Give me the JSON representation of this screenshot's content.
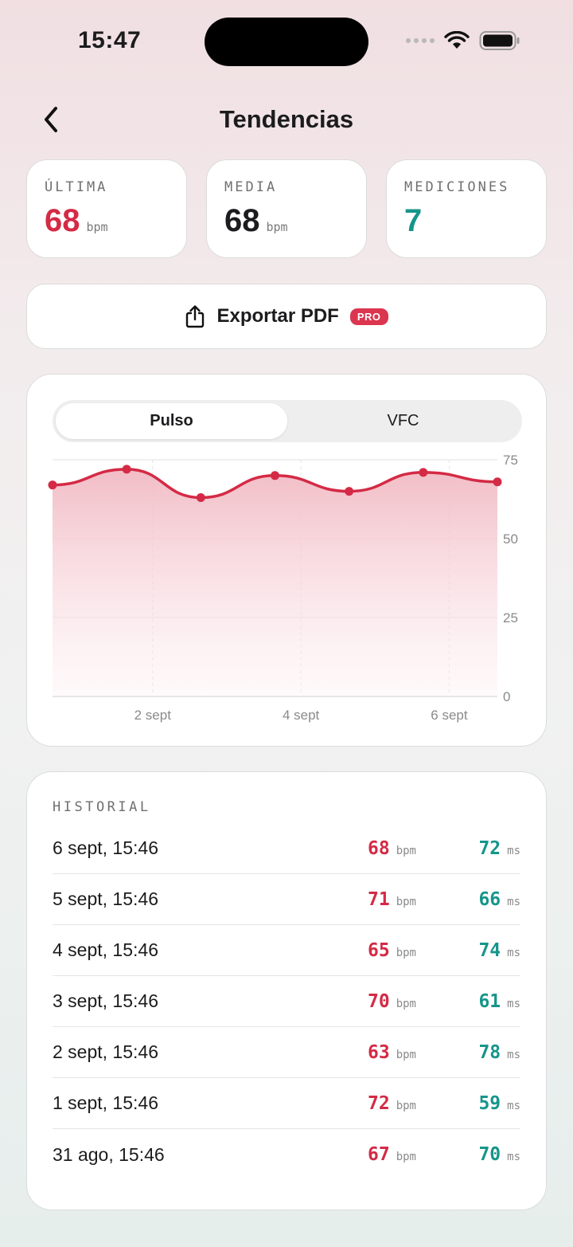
{
  "status": {
    "time": "15:47"
  },
  "header": {
    "title": "Tendencias",
    "back_icon": "chevron-left-icon"
  },
  "stats": [
    {
      "label": "ÚLTIMA",
      "value": "68",
      "unit": "bpm",
      "color": "#d42a45"
    },
    {
      "label": "MEDIA",
      "value": "68",
      "unit": "bpm",
      "color": "#1c1c1e"
    },
    {
      "label": "MEDICIONES",
      "value": "7",
      "unit": "",
      "color": "#16958a"
    }
  ],
  "export": {
    "label": "Exportar PDF",
    "badge": "PRO",
    "icon": "share-icon"
  },
  "tabs": [
    {
      "label": "Pulso",
      "active": true
    },
    {
      "label": "VFC",
      "active": false
    }
  ],
  "chart_data": {
    "type": "area",
    "x": [
      "31 ago",
      "1 sept",
      "2 sept",
      "3 sept",
      "4 sept",
      "5 sept",
      "6 sept"
    ],
    "series": [
      {
        "values": [
          67,
          72,
          63,
          70,
          65,
          71,
          68
        ]
      }
    ],
    "x_tick_labels": [
      "2 sept",
      "4 sept",
      "6 sept"
    ],
    "y_ticks": [
      75,
      50,
      25,
      0
    ],
    "ylim": [
      0,
      75
    ],
    "grid": true,
    "color": "#d42a45"
  },
  "history": {
    "title": "HISTORIAL",
    "rows": [
      {
        "date": "6 sept, 15:46",
        "bpm": "68",
        "bpm_unit": "bpm",
        "hrv": "72",
        "hrv_unit": "ms"
      },
      {
        "date": "5 sept, 15:46",
        "bpm": "71",
        "bpm_unit": "bpm",
        "hrv": "66",
        "hrv_unit": "ms"
      },
      {
        "date": "4 sept, 15:46",
        "bpm": "65",
        "bpm_unit": "bpm",
        "hrv": "74",
        "hrv_unit": "ms"
      },
      {
        "date": "3 sept, 15:46",
        "bpm": "70",
        "bpm_unit": "bpm",
        "hrv": "61",
        "hrv_unit": "ms"
      },
      {
        "date": "2 sept, 15:46",
        "bpm": "63",
        "bpm_unit": "bpm",
        "hrv": "78",
        "hrv_unit": "ms"
      },
      {
        "date": "1 sept, 15:46",
        "bpm": "72",
        "bpm_unit": "bpm",
        "hrv": "59",
        "hrv_unit": "ms"
      },
      {
        "date": "31 ago, 15:46",
        "bpm": "67",
        "bpm_unit": "bpm",
        "hrv": "70",
        "hrv_unit": "ms"
      }
    ]
  }
}
